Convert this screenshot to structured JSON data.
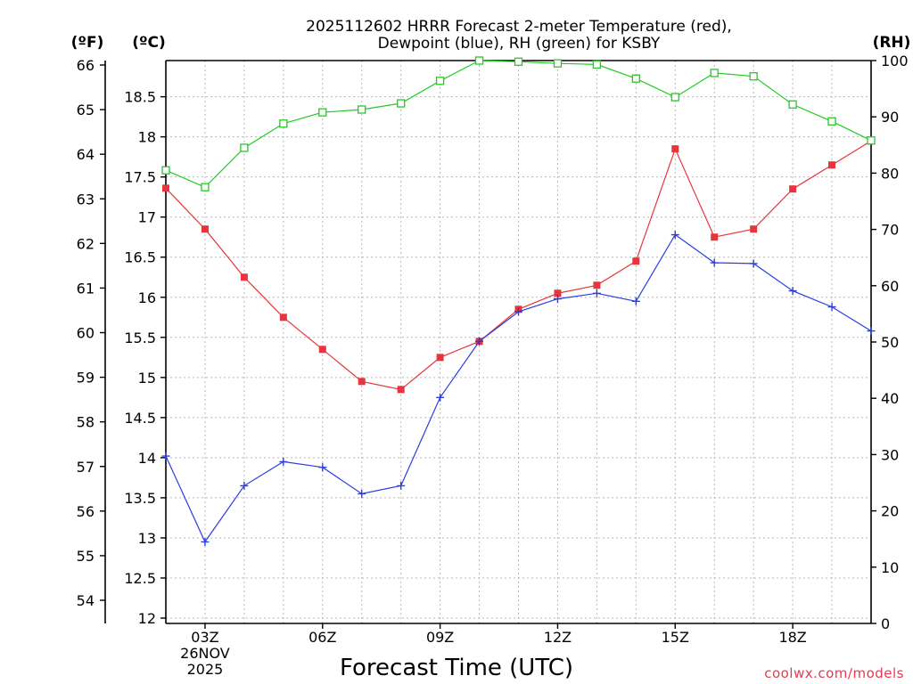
{
  "chart_data": {
    "type": "line",
    "title_line1": "2025112602 HRRR Forecast 2-meter Temperature (red),",
    "title_line2": "Dewpoint (blue), RH (green) for KSBY",
    "xlabel": "Forecast Time (UTC)",
    "credit": "coolwx.com/models",
    "unit_f": "(ºF)",
    "unit_c": "(ºC)",
    "unit_rh": "(RH)",
    "x": [
      2,
      3,
      4,
      5,
      6,
      7,
      8,
      9,
      10,
      11,
      12,
      13,
      14,
      15,
      16,
      17,
      18,
      19,
      20
    ],
    "xlim": [
      2,
      20
    ],
    "x_ticks": [
      {
        "x": 3,
        "lines": [
          "03Z",
          "26NOV",
          "2025"
        ]
      },
      {
        "x": 6,
        "lines": [
          "06Z"
        ]
      },
      {
        "x": 9,
        "lines": [
          "09Z"
        ]
      },
      {
        "x": 12,
        "lines": [
          "12Z"
        ]
      },
      {
        "x": 15,
        "lines": [
          "15Z"
        ]
      },
      {
        "x": 18,
        "lines": [
          "18Z"
        ]
      }
    ],
    "celsius_axis": {
      "ylim": [
        12,
        19
      ],
      "ticks": [
        "12",
        "12.5",
        "13",
        "13.5",
        "14",
        "14.5",
        "15",
        "15.5",
        "16",
        "16.5",
        "17",
        "17.5",
        "18",
        "18.5"
      ]
    },
    "fahrenheit_axis": {
      "ticks": [
        "54",
        "55",
        "56",
        "57",
        "58",
        "59",
        "60",
        "61",
        "62",
        "63",
        "64",
        "65",
        "66"
      ]
    },
    "rh_axis": {
      "ylim": [
        0,
        100
      ],
      "ticks": [
        "0",
        "10",
        "20",
        "30",
        "40",
        "50",
        "60",
        "70",
        "80",
        "90",
        "100"
      ]
    },
    "series": [
      {
        "name": "Temperature",
        "color": "#e8343c",
        "axis": "celsius",
        "marker": "filled-square",
        "values": [
          17.36,
          16.85,
          16.25,
          15.75,
          15.35,
          14.95,
          14.85,
          15.25,
          15.45,
          15.85,
          16.05,
          16.15,
          16.45,
          17.85,
          16.75,
          16.85,
          17.35,
          17.65,
          17.95
        ]
      },
      {
        "name": "Dewpoint",
        "color": "#2a3ee0",
        "axis": "celsius",
        "marker": "plus",
        "values": [
          14.02,
          12.95,
          13.65,
          13.95,
          13.88,
          13.55,
          13.65,
          14.75,
          15.45,
          15.82,
          15.98,
          16.05,
          15.95,
          16.78,
          16.43,
          16.42,
          16.08,
          15.88,
          15.58
        ]
      },
      {
        "name": "RH",
        "color": "#22cc22",
        "axis": "rh",
        "marker": "open-square",
        "values": [
          80.5,
          77.5,
          84.5,
          88.8,
          90.8,
          91.3,
          92.4,
          96.4,
          100.0,
          99.8,
          99.5,
          99.3,
          96.8,
          93.5,
          97.8,
          97.2,
          92.2,
          89.2,
          85.8
        ]
      }
    ]
  }
}
